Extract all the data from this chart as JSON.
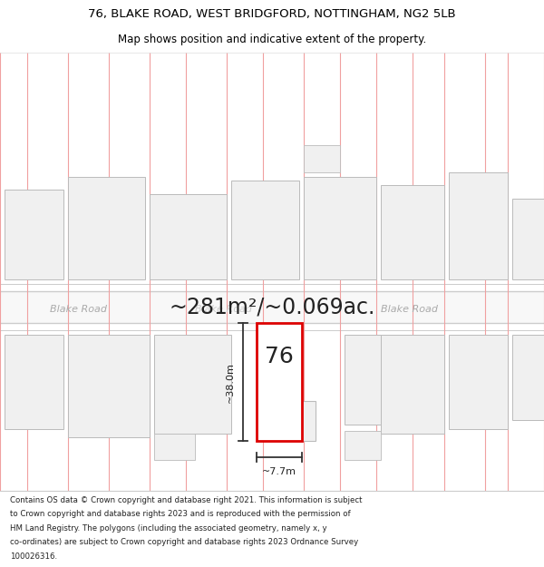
{
  "title_line1": "76, BLAKE ROAD, WEST BRIDGFORD, NOTTINGHAM, NG2 5LB",
  "title_line2": "Map shows position and indicative extent of the property.",
  "area_text": "~281m²/~0.069ac.",
  "road_name": "Blake Road",
  "property_number": "76",
  "dim_height": "~38.0m",
  "dim_width": "~7.7m",
  "footer_lines": [
    "Contains OS data © Crown copyright and database right 2021. This information is subject",
    "to Crown copyright and database rights 2023 and is reproduced with the permission of",
    "HM Land Registry. The polygons (including the associated geometry, namely x, y",
    "co-ordinates) are subject to Crown copyright and database rights 2023 Ordnance Survey",
    "100026316."
  ],
  "bg_color": "#ffffff",
  "map_bg": "#ffffff",
  "building_fill": "#f0f0f0",
  "plot_line_color": "#f0a0a0",
  "building_edge_dark": "#bbbbbb",
  "road_line_color": "#cccccc",
  "road_fill": "#f8f8f8",
  "pavement_fill": "#f0f0f0",
  "property_edge": "#dd0000",
  "property_fill": "#ffffff",
  "line_color": "#333333",
  "road_label_color": "#aaaaaa",
  "title_fontsize": 9.5,
  "subtitle_fontsize": 8.5,
  "area_fontsize": 17,
  "road_label_fontsize": 8,
  "prop_num_fontsize": 18,
  "dim_fontsize": 8,
  "footer_fontsize": 6.2
}
